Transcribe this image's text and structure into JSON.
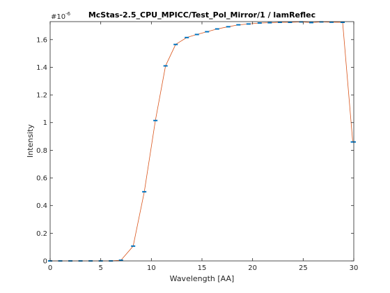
{
  "chart_data": {
    "type": "line",
    "title": "McStas-2.5_CPU_MPICC/Test_Pol_Mirror/1 / lamReflec",
    "xlabel": "Wavelength [AA]",
    "ylabel": "Intensity",
    "y_exponent_base": "#10",
    "y_exponent_power": "-6",
    "xlim": [
      0,
      30
    ],
    "ylim": [
      0,
      1.73
    ],
    "xticks": [
      0,
      5,
      10,
      15,
      20,
      25,
      30
    ],
    "yticks": [
      0,
      0.2,
      0.4,
      0.6,
      0.8,
      1,
      1.2,
      1.4,
      1.6
    ],
    "ytick_labels": [
      "0",
      "0.2",
      "0.4",
      "0.6",
      "0.8",
      "1",
      "1.2",
      "1.4",
      "1.6"
    ],
    "grid": false,
    "series": [
      {
        "line_color": "#d95319",
        "marker_color": "#0072bd",
        "x": [
          0,
          1,
          2,
          3,
          4,
          5,
          6,
          7,
          8.2,
          9.3,
          10.4,
          11.4,
          12.4,
          13.5,
          14.5,
          15.5,
          16.5,
          17.6,
          18.6,
          19.6,
          20.7,
          21.7,
          22.7,
          23.7,
          24.8,
          25.8,
          26.8,
          27.8,
          28.9,
          29.9,
          30
        ],
        "y": [
          0,
          0,
          0,
          0,
          0,
          0,
          0,
          0.005,
          0.107,
          0.5,
          1.015,
          1.41,
          1.565,
          1.615,
          1.637,
          1.657,
          1.677,
          1.693,
          1.707,
          1.713,
          1.72,
          1.722,
          1.725,
          1.725,
          1.728,
          1.723,
          1.728,
          1.726,
          1.725,
          0.86,
          0.86
        ]
      }
    ]
  }
}
